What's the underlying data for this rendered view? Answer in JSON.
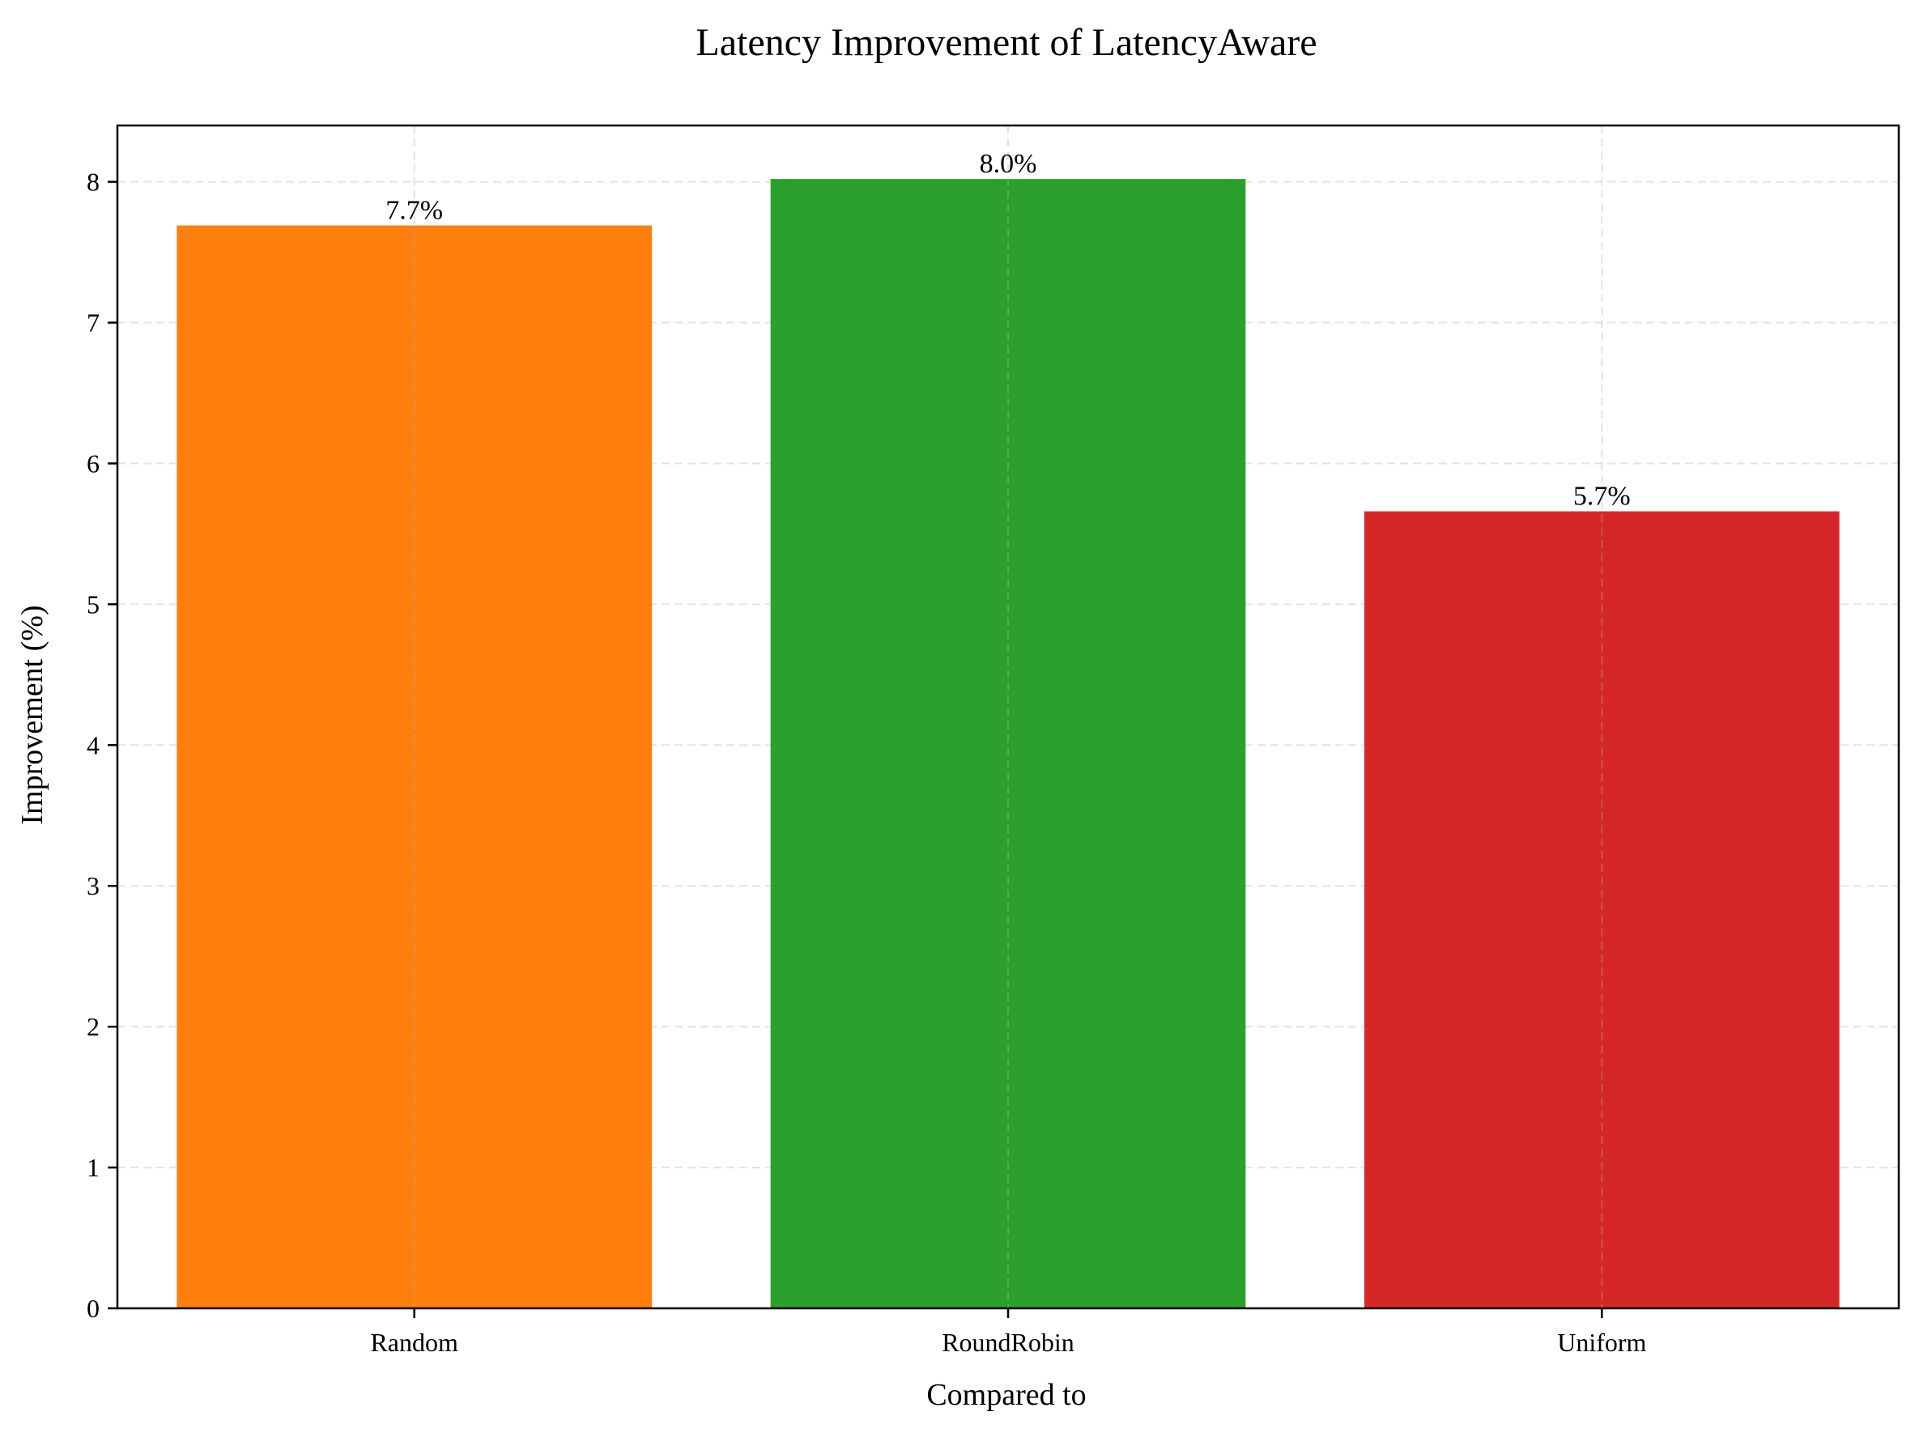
{
  "chart_data": {
    "type": "bar",
    "title": "Latency Improvement of LatencyAware",
    "xlabel": "Compared to",
    "ylabel": "Improvement (%)",
    "categories": [
      "Random",
      "RoundRobin",
      "Uniform"
    ],
    "values": [
      7.69,
      8.02,
      5.66
    ],
    "data_labels": [
      "7.7%",
      "8.0%",
      "5.7%"
    ],
    "colors": [
      "#ff7f0e",
      "#2ca02c",
      "#d62728"
    ],
    "ylim": [
      0,
      8.4
    ],
    "yticks": [
      0,
      1,
      2,
      3,
      4,
      5,
      6,
      7,
      8
    ],
    "grid": true,
    "legend": "none"
  }
}
